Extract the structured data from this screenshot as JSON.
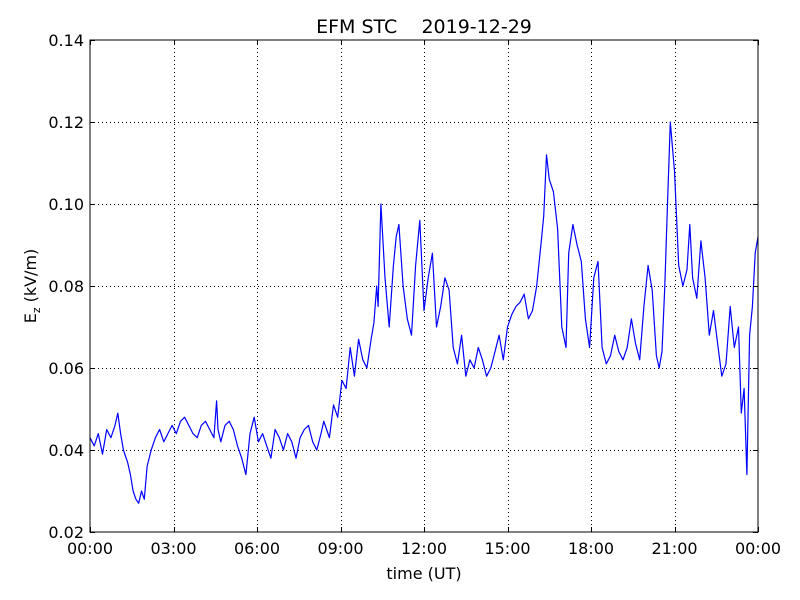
{
  "chart_data": {
    "type": "line",
    "title": "EFM STC    2019-12-29",
    "xlabel": "time (UT)",
    "ylabel_main": "E",
    "ylabel_sub": "z",
    "ylabel_unit": "(kV/m)",
    "xlim": [
      0,
      24
    ],
    "ylim": [
      0.02,
      0.14
    ],
    "xticks": [
      0,
      3,
      6,
      9,
      12,
      15,
      18,
      21,
      24
    ],
    "xtick_labels": [
      "00:00",
      "03:00",
      "06:00",
      "09:00",
      "12:00",
      "15:00",
      "18:00",
      "21:00",
      "00:00"
    ],
    "yticks": [
      0.02,
      0.04,
      0.06,
      0.08,
      0.1,
      0.12,
      0.14
    ],
    "ytick_labels": [
      "0.02",
      "0.04",
      "0.06",
      "0.08",
      "0.10",
      "0.12",
      "0.14"
    ],
    "grid": true,
    "series": [
      {
        "color": "#0000ff",
        "x": [
          0.0,
          0.15,
          0.3,
          0.45,
          0.6,
          0.75,
          0.9,
          1.0,
          1.1,
          1.2,
          1.35,
          1.45,
          1.55,
          1.65,
          1.75,
          1.85,
          1.95,
          2.05,
          2.2,
          2.35,
          2.5,
          2.65,
          2.8,
          2.95,
          3.1,
          3.25,
          3.4,
          3.55,
          3.7,
          3.85,
          4.0,
          4.15,
          4.3,
          4.45,
          4.55,
          4.6,
          4.7,
          4.85,
          5.0,
          5.15,
          5.3,
          5.45,
          5.6,
          5.75,
          5.9,
          6.05,
          6.2,
          6.35,
          6.5,
          6.65,
          6.8,
          6.95,
          7.1,
          7.25,
          7.4,
          7.55,
          7.7,
          7.85,
          8.0,
          8.15,
          8.3,
          8.4,
          8.5,
          8.6,
          8.75,
          8.9,
          9.05,
          9.2,
          9.35,
          9.5,
          9.65,
          9.8,
          9.95,
          10.1,
          10.2,
          10.3,
          10.35,
          10.45,
          10.6,
          10.75,
          10.9,
          11.0,
          11.1,
          11.25,
          11.4,
          11.55,
          11.7,
          11.85,
          12.0,
          12.15,
          12.3,
          12.45,
          12.6,
          12.75,
          12.9,
          13.05,
          13.2,
          13.35,
          13.5,
          13.65,
          13.8,
          13.95,
          14.1,
          14.25,
          14.4,
          14.55,
          14.7,
          14.85,
          15.0,
          15.15,
          15.3,
          15.45,
          15.6,
          15.75,
          15.9,
          16.05,
          16.2,
          16.3,
          16.4,
          16.5,
          16.65,
          16.8,
          16.95,
          17.1,
          17.2,
          17.35,
          17.5,
          17.65,
          17.8,
          17.95,
          18.1,
          18.25,
          18.4,
          18.55,
          18.7,
          18.85,
          19.0,
          19.15,
          19.3,
          19.45,
          19.6,
          19.75,
          19.9,
          20.05,
          20.2,
          20.35,
          20.45,
          20.55,
          20.65,
          20.75,
          20.85,
          21.0,
          21.15,
          21.3,
          21.45,
          21.55,
          21.65,
          21.8,
          21.95,
          22.1,
          22.25,
          22.4,
          22.55,
          22.7,
          22.85,
          23.0,
          23.15,
          23.3,
          23.4,
          23.5,
          23.6,
          23.7,
          23.8,
          23.9,
          24.0
        ],
        "values": [
          0.043,
          0.041,
          0.044,
          0.039,
          0.045,
          0.043,
          0.046,
          0.049,
          0.044,
          0.04,
          0.037,
          0.034,
          0.03,
          0.028,
          0.027,
          0.03,
          0.028,
          0.036,
          0.04,
          0.043,
          0.045,
          0.042,
          0.044,
          0.046,
          0.044,
          0.047,
          0.048,
          0.046,
          0.044,
          0.043,
          0.046,
          0.047,
          0.045,
          0.043,
          0.052,
          0.045,
          0.042,
          0.046,
          0.047,
          0.045,
          0.041,
          0.038,
          0.034,
          0.044,
          0.048,
          0.042,
          0.044,
          0.041,
          0.038,
          0.045,
          0.043,
          0.04,
          0.044,
          0.042,
          0.038,
          0.043,
          0.045,
          0.046,
          0.042,
          0.04,
          0.044,
          0.047,
          0.045,
          0.043,
          0.051,
          0.048,
          0.057,
          0.055,
          0.065,
          0.058,
          0.067,
          0.062,
          0.06,
          0.067,
          0.071,
          0.08,
          0.075,
          0.1,
          0.082,
          0.07,
          0.085,
          0.092,
          0.095,
          0.08,
          0.072,
          0.068,
          0.085,
          0.096,
          0.074,
          0.082,
          0.088,
          0.07,
          0.075,
          0.082,
          0.079,
          0.065,
          0.061,
          0.068,
          0.058,
          0.062,
          0.06,
          0.065,
          0.062,
          0.058,
          0.06,
          0.064,
          0.068,
          0.062,
          0.07,
          0.073,
          0.075,
          0.076,
          0.078,
          0.072,
          0.074,
          0.08,
          0.09,
          0.097,
          0.112,
          0.106,
          0.103,
          0.094,
          0.07,
          0.065,
          0.088,
          0.095,
          0.09,
          0.086,
          0.072,
          0.065,
          0.082,
          0.086,
          0.065,
          0.061,
          0.063,
          0.068,
          0.064,
          0.062,
          0.065,
          0.072,
          0.066,
          0.062,
          0.075,
          0.085,
          0.079,
          0.063,
          0.06,
          0.064,
          0.08,
          0.1,
          0.12,
          0.108,
          0.085,
          0.08,
          0.084,
          0.095,
          0.082,
          0.077,
          0.091,
          0.082,
          0.068,
          0.074,
          0.066,
          0.058,
          0.061,
          0.075,
          0.065,
          0.07,
          0.049,
          0.055,
          0.034,
          0.068,
          0.075,
          0.088,
          0.092
        ]
      }
    ]
  }
}
